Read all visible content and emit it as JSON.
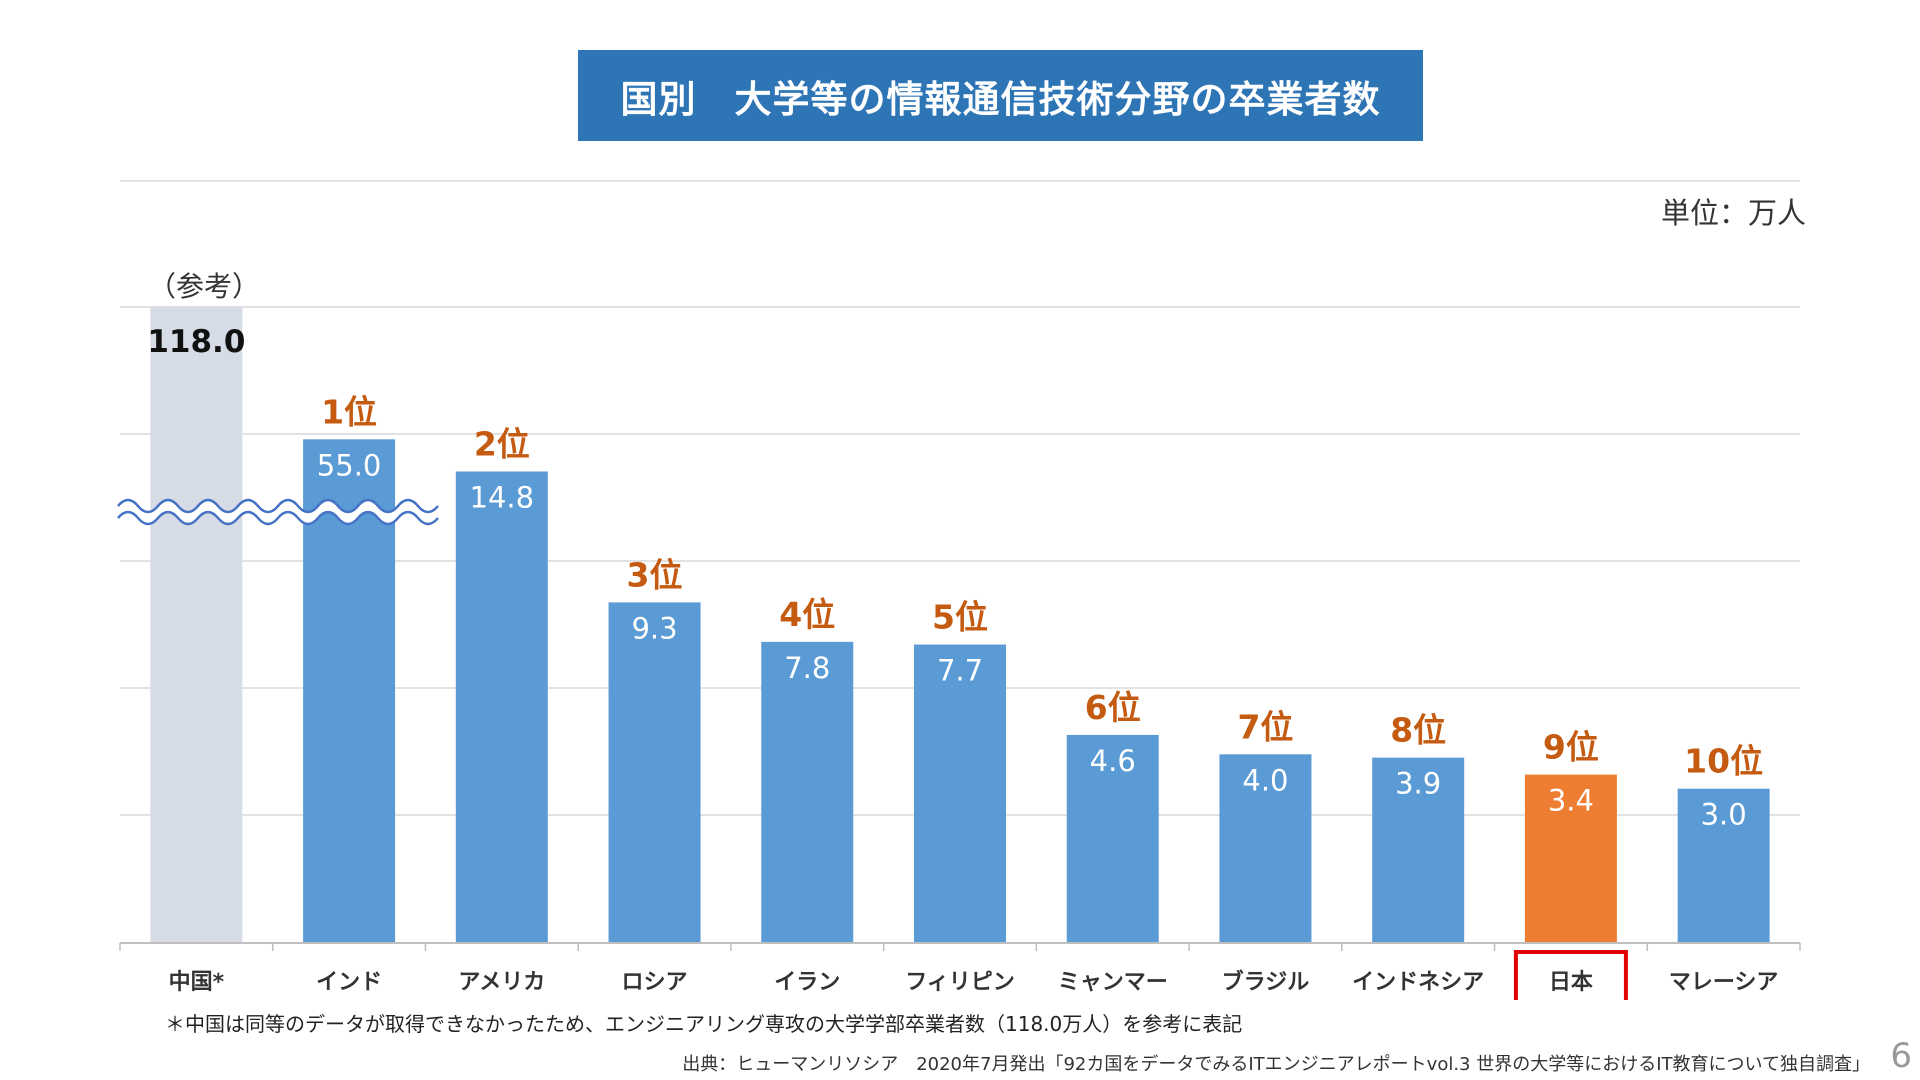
{
  "title": "国別　大学等の情報通信技術分野の卒業者数",
  "unit_label": "単位：万人",
  "reference_label": "（参考）",
  "footnote": "＊中国は同等のデータが取得できなかったため、エンジニアリング専攻の大学学部卒業者数（118.0万人）を参考に表記",
  "source": "出典：ヒューマンリソシア　2020年7月発出「92カ国をデータでみるITエンジニアレポートvol.3 世界の大学等におけるIT教育について独自調査」",
  "page_number": "6",
  "colors": {
    "bar": "#5b9bd5",
    "reference_bar": "#d6dce5",
    "highlight_bar": "#ed7d31",
    "rank_text": "#c55a11",
    "highlight_box": "#e00000",
    "wave": "#4472c4",
    "grid": "#d9d9d9"
  },
  "chart_data": {
    "type": "bar",
    "title": "国別　大学等の情報通信技術分野の卒業者数",
    "ylabel": "単位：万人",
    "axis_break": true,
    "categories": [
      "中国*",
      "インド",
      "アメリカ",
      "ロシア",
      "イラン",
      "フィリピン",
      "ミャンマー",
      "ブラジル",
      "インドネシア",
      "日本",
      "マレーシア"
    ],
    "values": [
      118.0,
      55.0,
      14.8,
      9.3,
      7.8,
      7.7,
      4.6,
      4.0,
      3.9,
      3.4,
      3.0
    ],
    "value_labels": [
      "118.0",
      "55.0",
      "14.8",
      "9.3",
      "7.8",
      "7.7",
      "4.6",
      "4.0",
      "3.9",
      "3.4",
      "3.0"
    ],
    "ranks": [
      "",
      "1位",
      "2位",
      "3位",
      "4位",
      "5位",
      "6位",
      "7位",
      "8位",
      "9位",
      "10位"
    ],
    "reference_index": 0,
    "highlight_index": 9
  }
}
